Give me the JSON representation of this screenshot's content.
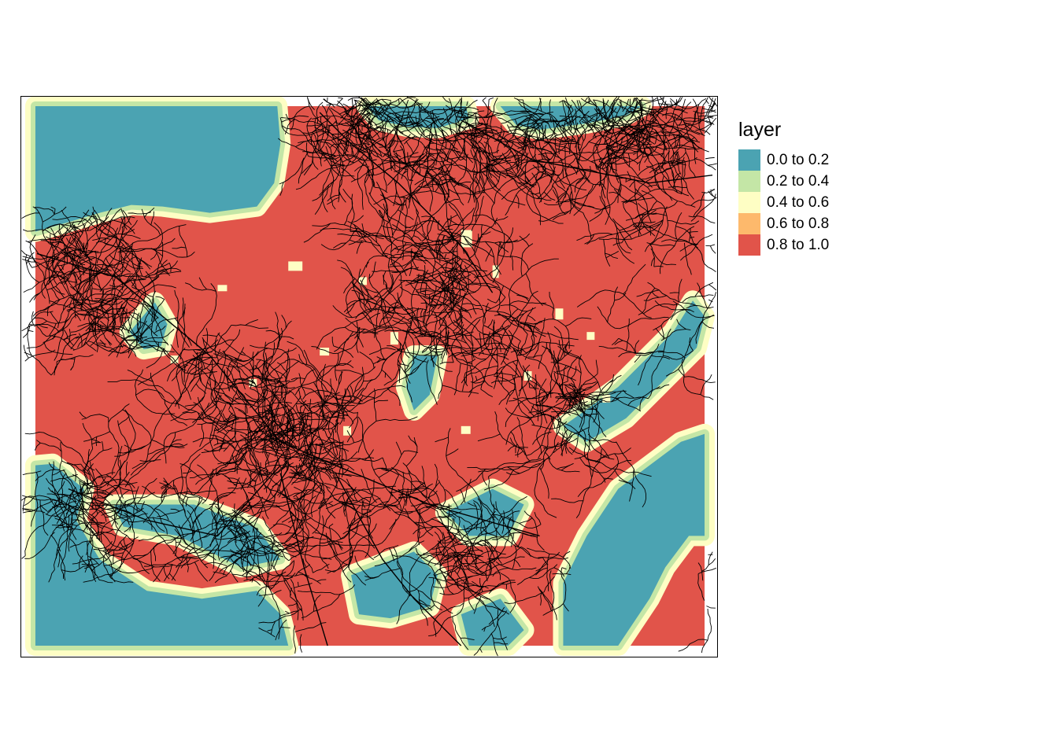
{
  "map": {
    "layer_name": "layer",
    "description_kind": "raster with line network overlay",
    "raster_classes": [
      {
        "range": "0.0 to 0.2",
        "min": 0.0,
        "max": 0.2,
        "color": "#4BA3B2"
      },
      {
        "range": "0.2 to 0.4",
        "min": 0.2,
        "max": 0.4,
        "color": "#C4E6A6"
      },
      {
        "range": "0.4 to 0.6",
        "min": 0.4,
        "max": 0.6,
        "color": "#FEFEC4"
      },
      {
        "range": "0.6 to 0.8",
        "min": 0.6,
        "max": 0.8,
        "color": "#FDB96C"
      },
      {
        "range": "0.8 to 1.0",
        "min": 0.8,
        "max": 1.0,
        "color": "#E1544A"
      }
    ],
    "overlay_color": "#000000"
  },
  "legend": {
    "title": "layer",
    "placement": "right-top",
    "items": [
      {
        "label": "0.0 to 0.2",
        "color": "#4BA3B2"
      },
      {
        "label": "0.2 to 0.4",
        "color": "#C4E6A6"
      },
      {
        "label": "0.4 to 0.6",
        "color": "#FEFEC4"
      },
      {
        "label": "0.6 to 0.8",
        "color": "#FDB96C"
      },
      {
        "label": "0.8 to 1.0",
        "color": "#E1544A"
      }
    ]
  }
}
